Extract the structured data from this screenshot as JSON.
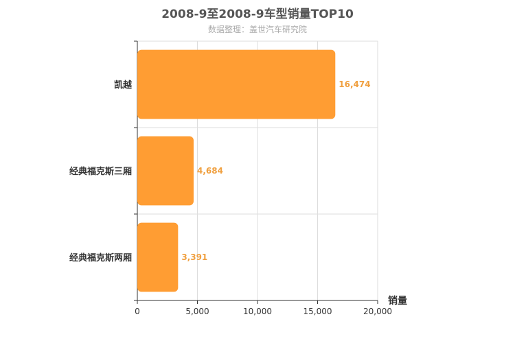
{
  "chart_data": {
    "type": "bar",
    "orientation": "horizontal",
    "title": "2008-9至2008-9车型销量TOP10",
    "subtitle": "数据整理：盖世汽车研究院",
    "categories": [
      "凯越",
      "经典福克斯三厢",
      "经典福克斯两厢"
    ],
    "values": [
      16474,
      4684,
      3391
    ],
    "value_labels": [
      "16,474",
      "4,684",
      "3,391"
    ],
    "xlabel": "销量",
    "xlim": [
      0,
      20000
    ],
    "xticks": [
      0,
      5000,
      10000,
      15000,
      20000
    ],
    "xtick_labels": [
      "0",
      "5,000",
      "10,000",
      "15,000",
      "20,000"
    ],
    "grid": true,
    "bar_color": "#ff9d33",
    "label_color": "#f0a040"
  }
}
